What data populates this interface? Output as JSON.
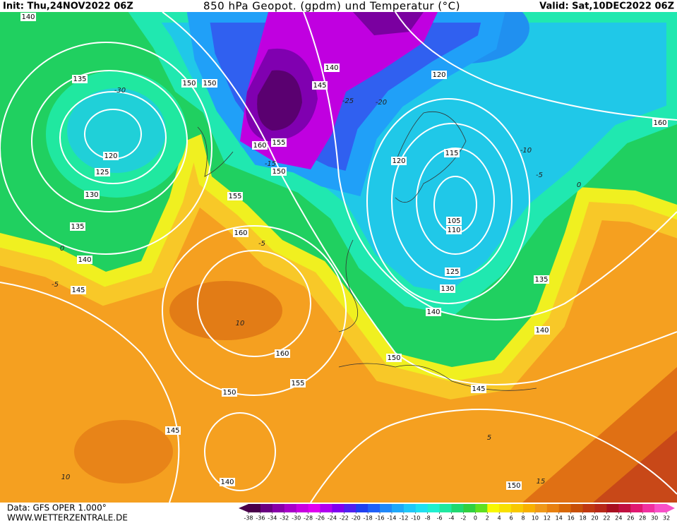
{
  "header": {
    "init": "Init: Thu,24NOV2022 06Z",
    "title": "850 hPa Geopot. (gpdm) und Temperatur (°C)",
    "valid": "Valid: Sat,10DEC2022 06Z"
  },
  "footer": {
    "source": "Data: GFS OPER 1.000°",
    "website": "WWW.WETTERZENTRALE.DE"
  },
  "colorbar": {
    "ticks": [
      -38,
      -36,
      -34,
      -32,
      -30,
      -28,
      -26,
      -24,
      -22,
      -20,
      -18,
      -16,
      -14,
      -12,
      -10,
      -8,
      -6,
      -4,
      -2,
      0,
      2,
      4,
      6,
      8,
      10,
      12,
      14,
      16,
      18,
      20,
      22,
      24,
      26,
      28,
      30,
      32
    ],
    "colors": [
      "#4a004a",
      "#6a0080",
      "#8800a8",
      "#a800c8",
      "#c800e0",
      "#e000f0",
      "#b000f0",
      "#8000f0",
      "#5020f0",
      "#2040f0",
      "#2060f8",
      "#2088f8",
      "#20a8f8",
      "#20c8f8",
      "#20e0f0",
      "#20f0d0",
      "#20e8a0",
      "#20d870",
      "#30d040",
      "#60e020",
      "#f8f800",
      "#f8e000",
      "#f8c800",
      "#f8b000",
      "#f09818",
      "#e88010",
      "#d86808",
      "#c85008",
      "#c03810",
      "#b82818",
      "#a81020",
      "#c01040",
      "#e01870",
      "#f030a0",
      "#f850c8"
    ]
  },
  "geopotential_labels": [
    140,
    135,
    150,
    150,
    120,
    125,
    130,
    135,
    140,
    145,
    160,
    155,
    150,
    155,
    160,
    140,
    145,
    120,
    160,
    120,
    115,
    105,
    110,
    125,
    130,
    135,
    140,
    140,
    160,
    150,
    155,
    145,
    150,
    145,
    140,
    150
  ],
  "temperature_labels": [
    -30,
    -25,
    -20,
    -15,
    -10,
    -5,
    0,
    0,
    -5,
    -5,
    10,
    5,
    10,
    15
  ]
}
